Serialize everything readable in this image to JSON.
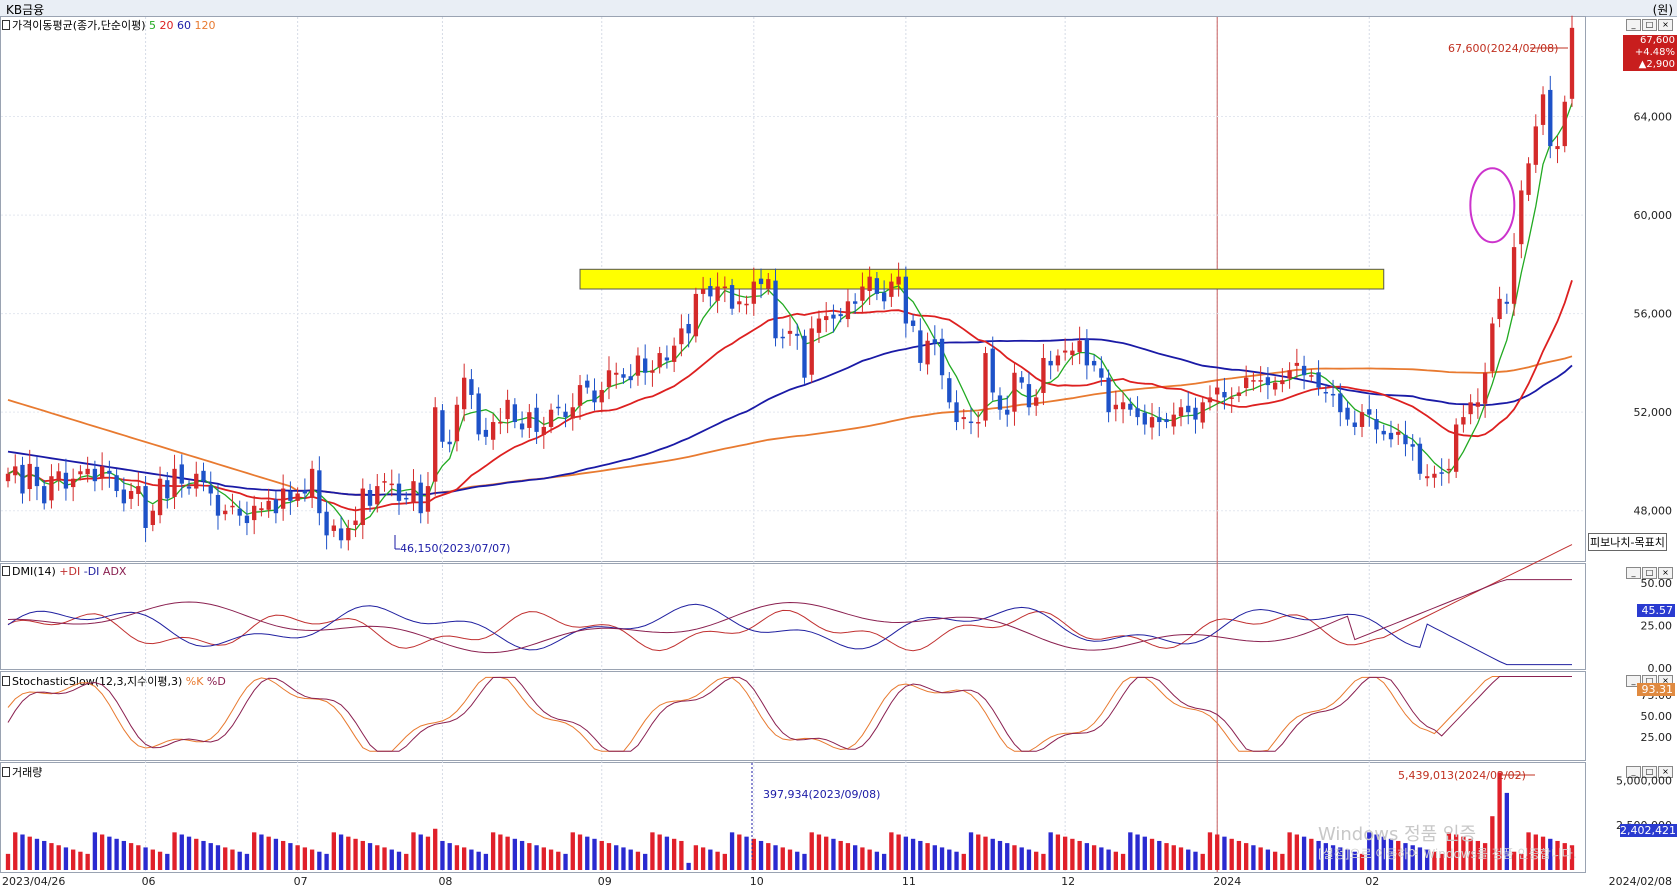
{
  "window": {
    "title": "KB금융",
    "unit": "(원)"
  },
  "panels": {
    "price": {
      "label": "가격이동평균(종가,단순이평)",
      "ma_periods": [
        "5",
        "20",
        "60",
        "120"
      ],
      "ma_colors": [
        "#22aa22",
        "#dd2020",
        "#1a1aa6",
        "#e87a30"
      ]
    },
    "dmi": {
      "label": "DMI(14)",
      "series": [
        "+DI",
        "-DI",
        "ADX"
      ],
      "series_colors": [
        "#c03030",
        "#2020a0",
        "#8a2050"
      ],
      "value_badge": "45.57"
    },
    "stoch": {
      "label": "StochasticSlow(12,3,지수이평,3)",
      "series": [
        "%K",
        "%D"
      ],
      "value_badge": "93.31"
    },
    "volume": {
      "label": "거래량",
      "value_badge": "2,402,421"
    }
  },
  "fib_label": "피보나치-목표치",
  "last_price_box": {
    "price": "67,600",
    "change_pct": "+4.48%",
    "change": "▲2,900"
  },
  "annotations": {
    "price_high": "67,600(2024/02/08)",
    "price_low": "46,150(2023/07/07)",
    "vol_high": "5,439,013(2024/02/02)",
    "vol_low": "397,934(2023/09/08)"
  },
  "x_axis_labels": [
    "2023/04/26",
    "06",
    "07",
    "08",
    "09",
    "10",
    "11",
    "12",
    "2024",
    "02",
    "2024/02/08"
  ],
  "chart_data": [
    {
      "type": "candlestick",
      "title": "가격이동평균(종가,단순이평)",
      "y_ticks": [
        "48,000",
        "52,000",
        "56,000",
        "60,000",
        "64,000"
      ],
      "ylim": [
        46000,
        68000
      ],
      "months": [
        {
          "label": "2023/04/26"
        },
        {
          "label": "06"
        },
        {
          "label": "07"
        },
        {
          "label": "08"
        },
        {
          "label": "09"
        },
        {
          "label": "10"
        },
        {
          "label": "11"
        },
        {
          "label": "12"
        },
        {
          "label": "2024"
        },
        {
          "label": "02"
        }
      ],
      "closes": [
        49500,
        49800,
        48700,
        49900,
        49000,
        48300,
        49400,
        49600,
        48900,
        49300,
        49600,
        49700,
        49200,
        49800,
        49500,
        48800,
        48300,
        48800,
        49000,
        47300,
        48000,
        49300,
        48500,
        49700,
        49100,
        48900,
        49500,
        49200,
        48700,
        47800,
        48000,
        48200,
        47800,
        47500,
        48200,
        48100,
        48400,
        47900,
        48900,
        48400,
        48700,
        48700,
        49700,
        47900,
        47000,
        47400,
        46800,
        47300,
        47600,
        48900,
        48200,
        49000,
        49200,
        49100,
        48400,
        48500,
        49200,
        47900,
        49000,
        52200,
        50800,
        50700,
        52300,
        53400,
        52700,
        51100,
        51000,
        51600,
        51600,
        52500,
        51600,
        51300,
        52000,
        51200,
        51400,
        52100,
        52200,
        51800,
        52200,
        53100,
        53000,
        52400,
        52900,
        53700,
        53600,
        53400,
        53300,
        54300,
        53600,
        53700,
        54400,
        54100,
        54700,
        55400,
        55200,
        56800,
        57000,
        56700,
        57100,
        57100,
        56200,
        56500,
        56400,
        57300,
        57200,
        57400,
        55000,
        55000,
        55300,
        55100,
        53400,
        55400,
        55800,
        55900,
        55800,
        55900,
        56500,
        56400,
        57100,
        57500,
        56800,
        56500,
        57300,
        57500,
        55600,
        55500,
        54000,
        54900,
        54800,
        53500,
        52400,
        51600,
        51800,
        51600,
        51600,
        54400,
        52800,
        52100,
        51900,
        53600,
        53200,
        52200,
        52600,
        54200,
        53900,
        54300,
        54500,
        54500,
        54900,
        53900,
        53900,
        53400,
        52000,
        52300,
        52400,
        52100,
        51800,
        51500,
        51800,
        51600,
        51600,
        51900,
        52200,
        52000,
        51700,
        52400,
        52600,
        53000,
        52600,
        52600,
        52800,
        53400,
        53300,
        53300,
        53100,
        53200,
        53300,
        53700,
        54000,
        53500,
        53500,
        53000,
        52800,
        52700,
        52000,
        51700,
        51400,
        52000,
        51900,
        51300,
        51100,
        50900,
        51200,
        50700,
        50600,
        49500,
        49400,
        49500,
        49500,
        49700,
        51500,
        51800,
        52400,
        52400,
        53600,
        55600,
        56600,
        56400,
        58700,
        61000,
        62100,
        63600,
        64900,
        62800,
        62800,
        64600,
        67600
      ],
      "ma5_end": 65800,
      "ma20_end": 55800,
      "ma60_end": 53600,
      "ma120_end": 53900,
      "resistance_zone": [
        57000,
        57800
      ]
    },
    {
      "type": "line",
      "title": "DMI(14)",
      "y_ticks": [
        "50.00",
        "25.00",
        "0.00"
      ],
      "ylim": [
        0,
        60
      ]
    },
    {
      "type": "line",
      "title": "StochasticSlow(12,3,지수이평,3)",
      "y_ticks": [
        "75.00",
        "50.00",
        "25.00"
      ],
      "ylim": [
        0,
        100
      ]
    },
    {
      "type": "bar",
      "title": "거래량",
      "y_ticks": [
        "5,000,000",
        "2,500,000"
      ],
      "ylim": [
        0,
        5800000
      ]
    }
  ]
}
